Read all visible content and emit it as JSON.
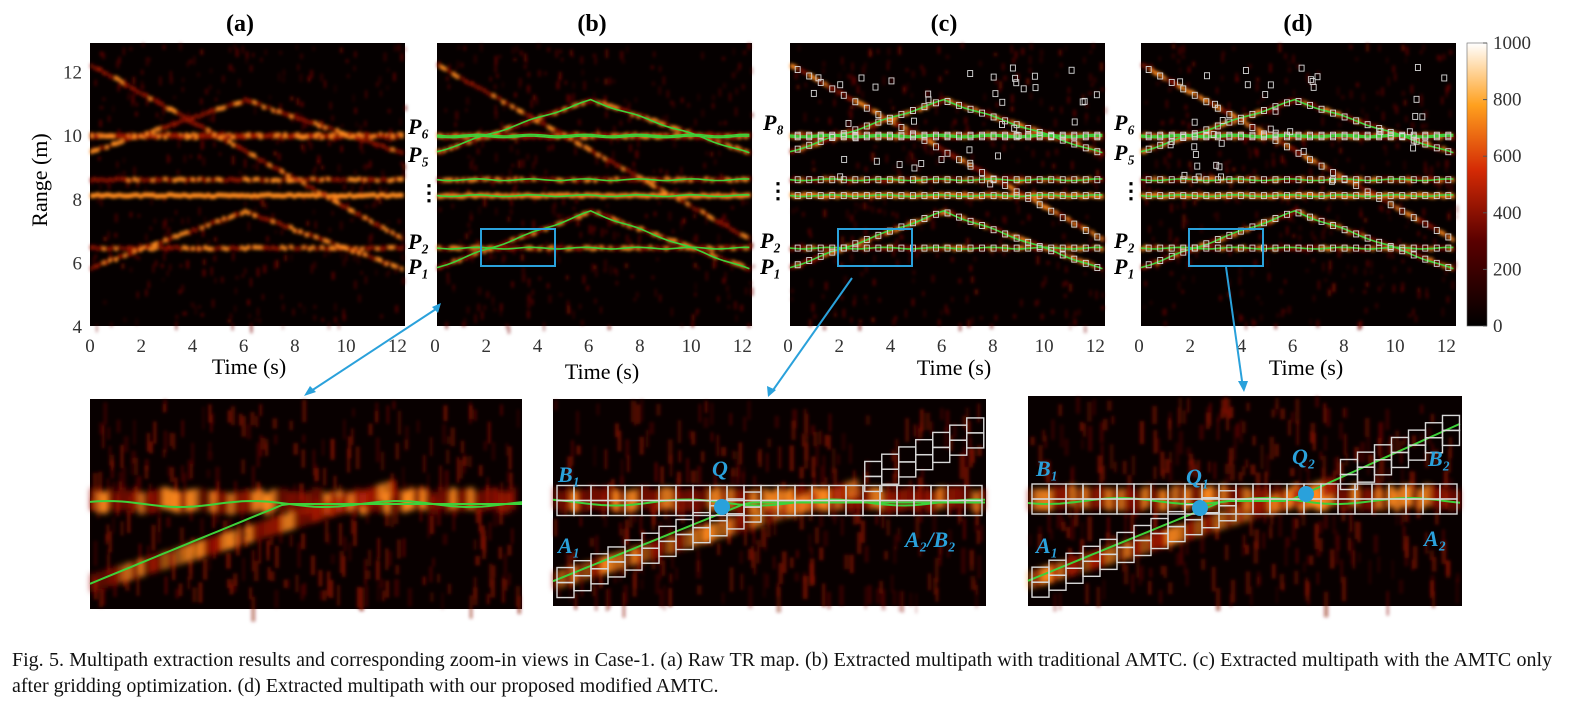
{
  "colors": {
    "heat_low": "#000000",
    "heat_mid": "#a81605",
    "heat_high": "#ff8a1e",
    "heat_top": "#ffffe6",
    "path_green": "#3ed13a",
    "highlight_blue": "#2aa1db",
    "box_gray": "#d8d8d8"
  },
  "panels": {
    "a": {
      "label": "(a)"
    },
    "b": {
      "label": "(b)",
      "path_labels": [
        "P₆",
        "P₅",
        "⋮",
        "P₂",
        "P₁"
      ]
    },
    "c": {
      "label": "(c)",
      "path_labels": [
        "P₈",
        "⋮",
        "P₂",
        "P₁"
      ]
    },
    "d": {
      "label": "(d)",
      "path_labels": [
        "P₆",
        "P₅",
        "⋮",
        "P₂",
        "P₁"
      ]
    }
  },
  "axes": {
    "ylabel": "Range (m)",
    "xlabel": "Time (s)",
    "y_ticks": [
      "12",
      "10",
      "8",
      "6",
      "4"
    ],
    "x_ticks": [
      "0",
      "2",
      "4",
      "6",
      "8",
      "10",
      "12"
    ]
  },
  "colorbar": {
    "ticks": [
      "1000",
      "800",
      "600",
      "400",
      "200",
      "0"
    ]
  },
  "zoom": {
    "middle": {
      "labels": [
        "B₁",
        "Q",
        "A₁",
        "A₂/B₂"
      ]
    },
    "right": {
      "labels": [
        "B₁",
        "Q₁",
        "Q₂",
        "B₂",
        "A₁",
        "A₂"
      ]
    }
  },
  "caption": {
    "line1": "Fig. 5.  Multipath extraction results and corresponding zoom-in views in Case-1. (a) Raw TR map. (b) Extracted multipath with traditional AMTC.",
    "line2": "(c) Extracted multipath with the AMTC only after gridding optimization. (d) Extracted multipath with our proposed modified AMTC."
  }
}
